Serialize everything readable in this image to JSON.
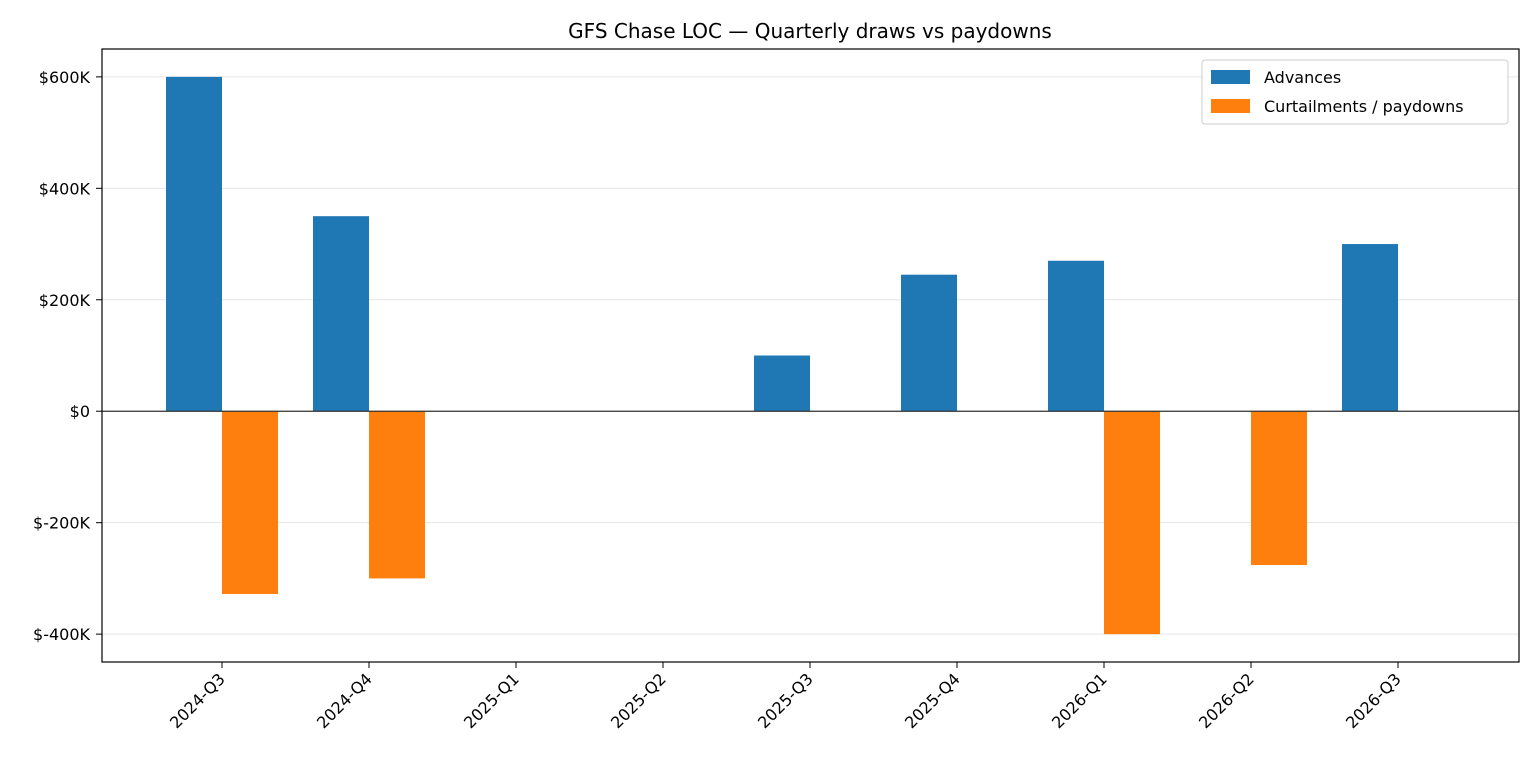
{
  "chart_data": {
    "type": "bar",
    "title": "GFS Chase LOC — Quarterly draws vs paydowns",
    "xlabel": "",
    "ylabel": "",
    "categories": [
      "2024-Q3",
      "2024-Q4",
      "2025-Q1",
      "2025-Q2",
      "2025-Q3",
      "2025-Q4",
      "2026-Q1",
      "2026-Q2",
      "2026-Q3"
    ],
    "series": [
      {
        "name": "Advances",
        "color": "#1f77b4",
        "values": [
          600000,
          350000,
          0,
          0,
          100000,
          245000,
          270000,
          0,
          300000
        ]
      },
      {
        "name": "Curtailments / paydowns",
        "color": "#ff7f0e",
        "values": [
          -328000,
          -300000,
          0,
          0,
          0,
          0,
          -400000,
          -276000,
          0
        ]
      }
    ],
    "ylim": [
      -450000,
      650000
    ],
    "yticks": [
      -400000,
      -200000,
      0,
      200000,
      400000,
      600000
    ],
    "ytick_labels": [
      "$-400K",
      "$-200K",
      "$0",
      "$200K",
      "$400K",
      "$600K"
    ],
    "grid": "y",
    "legend": "top-right"
  }
}
